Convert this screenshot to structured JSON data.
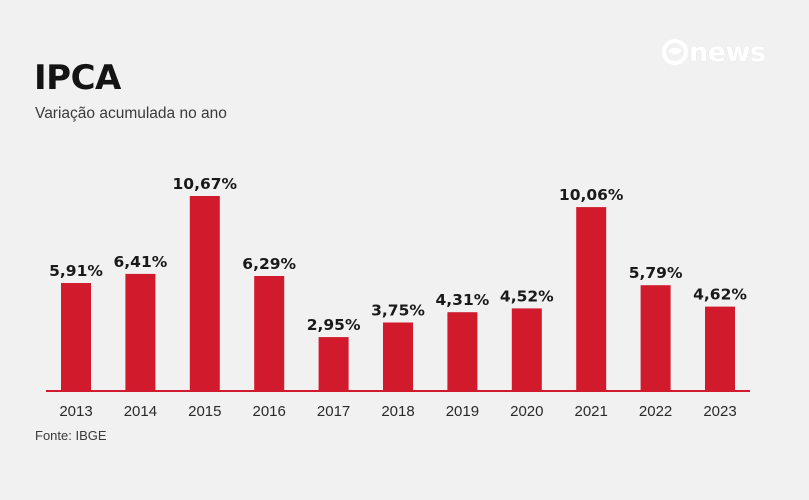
{
  "header": {
    "title": "IPCA",
    "subtitle": "Variação acumulada no ano"
  },
  "logo": {
    "text": "news",
    "icon": "globo-sphere-icon"
  },
  "footer": {
    "source": "Fonte: IBGE"
  },
  "colors": {
    "bar": "#d11b2c",
    "background": "#f1f1f1",
    "axis": "#d11b2c"
  },
  "chart_data": {
    "type": "bar",
    "title": "IPCA",
    "subtitle": "Variação acumulada no ano",
    "xlabel": "",
    "ylabel": "",
    "ylim": [
      0,
      10.67
    ],
    "grid": false,
    "legend": "none",
    "categories": [
      "2013",
      "2014",
      "2015",
      "2016",
      "2017",
      "2018",
      "2019",
      "2020",
      "2021",
      "2022",
      "2023"
    ],
    "values": [
      5.91,
      6.41,
      10.67,
      6.29,
      2.95,
      3.75,
      4.31,
      4.52,
      10.06,
      5.79,
      4.62
    ],
    "data_labels": [
      "5,91%",
      "6,41%",
      "10,67%",
      "6,29%",
      "2,95%",
      "3,75%",
      "4,31%",
      "4,52%",
      "10,06%",
      "5,79%",
      "4,62%"
    ]
  }
}
